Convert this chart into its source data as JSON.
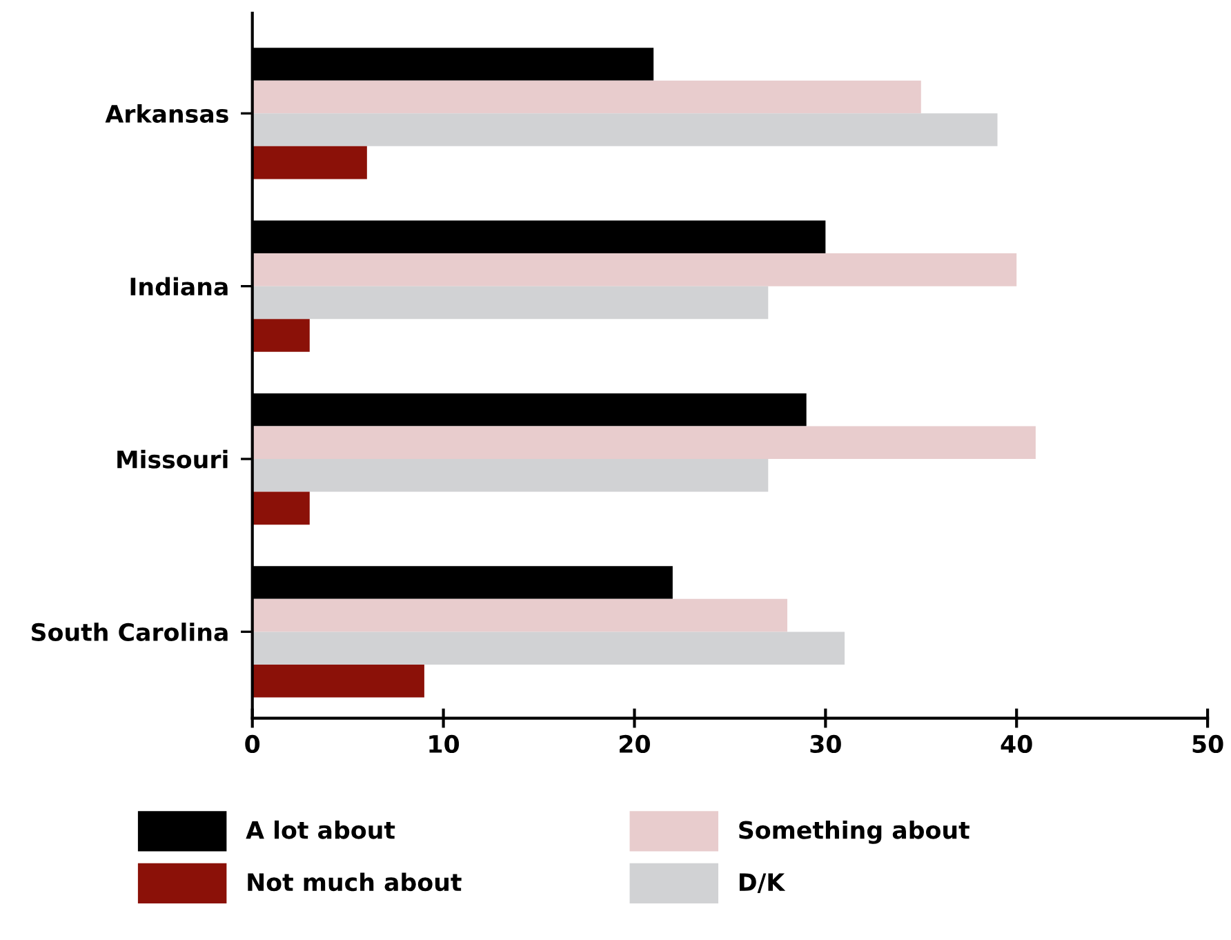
{
  "chart_data": {
    "type": "bar",
    "orientation": "horizontal",
    "categories": [
      "Arkansas",
      "Indiana",
      "Missouri",
      "South Carolina"
    ],
    "series": [
      {
        "name": "A lot about",
        "color": "#000000",
        "values": [
          21,
          30,
          29,
          22
        ]
      },
      {
        "name": "Something about",
        "color": "#e8cccd",
        "values": [
          35,
          40,
          41,
          28
        ]
      },
      {
        "name": "D/K",
        "color": "#d1d2d4",
        "values": [
          39,
          27,
          27,
          31
        ]
      },
      {
        "name": "Not much about",
        "color": "#8b1108",
        "values": [
          6,
          3,
          3,
          9
        ]
      }
    ],
    "xlim": [
      0,
      50
    ],
    "xticks": [
      0,
      10,
      20,
      30,
      40,
      50
    ],
    "grid": false,
    "legend": "bottom"
  }
}
